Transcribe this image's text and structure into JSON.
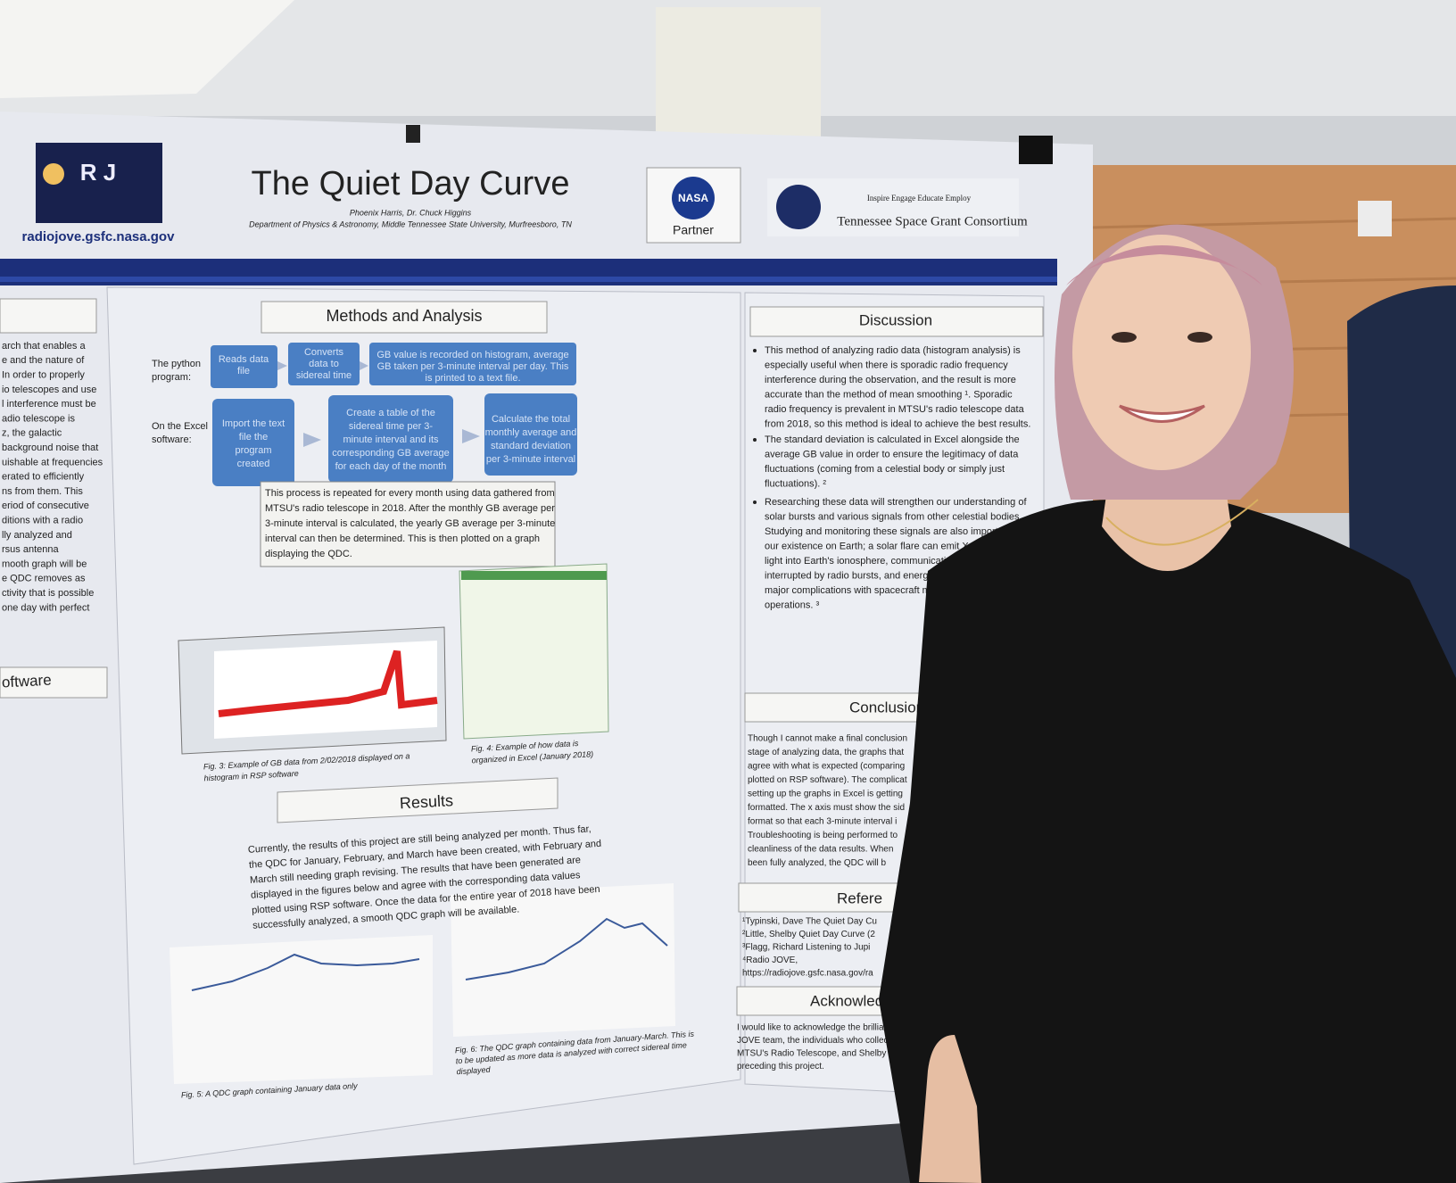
{
  "header": {
    "logo_url": "radiojove.gsfc.nasa.gov",
    "title": "The Quiet Day Curve",
    "authors": "Phoenix Harris, Dr. Chuck Higgins",
    "affiliation": "Department of Physics & Astronomy, Middle Tennessee State University, Murfreesboro, TN",
    "nasa_mark": "NASA",
    "nasa_label": "Partner",
    "tsgc_motto": "Inspire Engage Educate Employ",
    "tsgc_name": "Tennessee Space Grant Consortium"
  },
  "left_column": {
    "text": [
      "arch that enables a",
      "e and the nature of",
      "In order to properly",
      "io telescopes and use",
      "l interference must be",
      "adio telescope is",
      "z, the galactic",
      "background noise that",
      "uishable at frequencies",
      "erated to efficiently",
      "ns from them. This",
      "eriod of consecutive",
      "ditions with a radio",
      "lly analyzed and",
      "rsus antenna",
      "mooth graph will be",
      "e QDC removes as",
      "ctivity that is possible",
      "one day with perfect"
    ],
    "software_heading": "oftware"
  },
  "methods": {
    "heading": "Methods and Analysis",
    "python_label": [
      "The python",
      "program:"
    ],
    "python_steps": [
      [
        "Reads data",
        "file"
      ],
      [
        "Converts",
        "data to",
        "sidereal time"
      ],
      [
        "GB value is recorded on histogram, average",
        "GB taken per 3-minute interval per day. This",
        "is printed to a text file."
      ]
    ],
    "excel_label": [
      "On the Excel",
      "software:"
    ],
    "excel_steps": [
      [
        "Import the text",
        "file the",
        "program",
        "created"
      ],
      [
        "Create a table of the",
        "sidereal time per 3-",
        "minute interval and its",
        "corresponding GB average",
        "for each day of the month"
      ],
      [
        "Calculate the total",
        "monthly average and",
        "standard deviation",
        "per 3-minute interval"
      ]
    ],
    "note": [
      "This process is repeated for every month using data gathered from",
      "MTSU's radio telescope in 2018. After the monthly GB average per",
      "3-minute interval is calculated, the yearly GB average per 3-minute",
      "interval can then be determined. This is then plotted on a graph",
      "displaying the QDC."
    ]
  },
  "figures": {
    "fig3": [
      "Fig. 3: Example of GB data from 2/02/2018 displayed on a",
      "histogram in RSP software"
    ],
    "fig4": [
      "Fig. 4: Example of how data is",
      "organized in Excel (January 2018)"
    ],
    "fig5": "Fig. 5: A QDC graph containing January data only",
    "fig6": [
      "Fig. 6: The QDC graph containing data from January-March. This is",
      "to be updated as more data is analyzed with correct sidereal time",
      "displayed"
    ]
  },
  "results": {
    "heading": "Results",
    "text": [
      "Currently, the results of this project are still being analyzed per month. Thus far,",
      "the QDC for January, February, and March have been created, with February and",
      "March still needing graph revising. The results that have been generated are",
      "displayed in the figures below and agree with the corresponding data values",
      "plotted using RSP software. Once the data for the entire year of 2018 have been",
      "successfully analyzed, a smooth QDC graph will be available."
    ]
  },
  "discussion": {
    "heading": "Discussion",
    "bullets": [
      [
        "This method of analyzing radio data (histogram analysis) is",
        "especially useful when there is sporadic radio frequency",
        "interference during the observation, and the result is more",
        "accurate than the method of mean smoothing ¹. Sporadic",
        "radio frequency is prevalent in MTSU's radio telescope data",
        "from 2018, so this method is ideal to achieve the best results."
      ],
      [
        "The standard deviation is calculated in Excel alongside the",
        "average GB value in order to ensure the legitimacy of data",
        "fluctuations (coming from a celestial body or simply just",
        "fluctuations). ²"
      ],
      [
        "Researching these data will strengthen our understanding of",
        "solar bursts and various signals from other celestial bodies.",
        "Studying and monitoring these signals are also important for",
        "our existence on Earth; a solar flare can emit X-rays and UV",
        "light into Earth's ionosphere, communications can be",
        "interrupted by radio bursts, and energetic partic",
        "major complications with spacecraft missio",
        "operations. ³"
      ]
    ]
  },
  "conclusion": {
    "heading": "Conclusion",
    "text": [
      "Though I cannot make a final conclusion",
      "stage of analyzing data, the graphs that",
      "agree with what is expected (comparing",
      "plotted on RSP software). The complicat",
      "setting up the graphs in Excel is getting",
      "formatted. The x axis must show the sid",
      "format so that each 3-minute interval i",
      "Troubleshooting is being performed to",
      "cleanliness of the data results. When",
      "been fully analyzed, the QDC will b"
    ]
  },
  "references": {
    "heading": "Refere",
    "items": [
      "¹Typinski, Dave The Quiet Day Cu",
      "²Little, Shelby Quiet Day Curve (2",
      "³Flagg, Richard Listening to Jupi",
      "⁴Radio JOVE,",
      "https://radiojove.gsfc.nasa.gov/ra"
    ]
  },
  "acknowledgements": {
    "heading": "Acknowledgem",
    "text": [
      "I would like to acknowledge the brilliant ind",
      "JOVE team, the individuals who collected th",
      "MTSU's Radio Telescope, and Shelby Little's",
      "preceding this project."
    ]
  }
}
